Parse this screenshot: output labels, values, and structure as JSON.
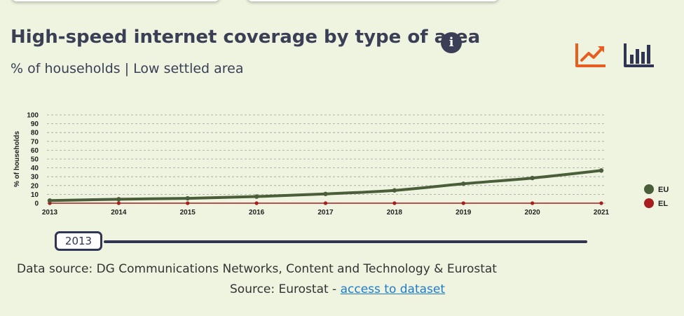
{
  "header": {
    "title": "High-speed internet coverage by type of area",
    "subtitle": "% of households | Low settled area"
  },
  "colors": {
    "accent": "#e85d20",
    "dark": "#2f3552",
    "eu": "#4a5e3a",
    "el": "#a81d1d",
    "background": "#eef4e0"
  },
  "icons": {
    "info": "info-icon",
    "line_view": "line-chart-icon",
    "bar_view": "bar-chart-icon"
  },
  "chart_data": {
    "type": "line",
    "x": [
      "2013",
      "2014",
      "2015",
      "2016",
      "2017",
      "2018",
      "2019",
      "2020",
      "2021"
    ],
    "series": [
      {
        "name": "EU",
        "color": "#4a5e3a",
        "values": [
          3,
          4.5,
          5.5,
          7.5,
          10.5,
          14.5,
          22,
          28.5,
          37
        ]
      },
      {
        "name": "EL",
        "color": "#a81d1d",
        "values": [
          0,
          0,
          0,
          0,
          0,
          0,
          0,
          0,
          0
        ]
      }
    ],
    "ylabel": "% of households",
    "yticks": [
      0,
      10,
      20,
      30,
      40,
      50,
      60,
      70,
      80,
      90,
      100
    ],
    "ylim": [
      0,
      100
    ],
    "grid": true,
    "legend": "right"
  },
  "timeline": {
    "selected_year": "2013"
  },
  "footer": {
    "data_source": "Data source: DG Communications Networks, Content and Technology & Eurostat",
    "source_prefix": "Source: Eurostat - ",
    "source_link": "access to dataset"
  }
}
